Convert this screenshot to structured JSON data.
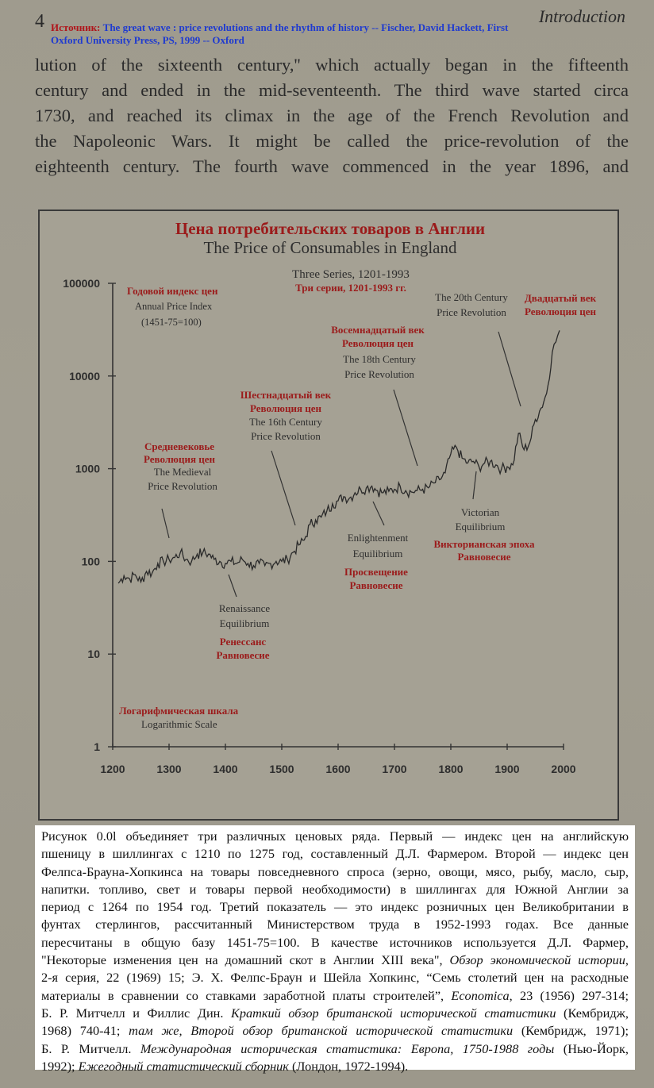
{
  "header": {
    "page_number": "4",
    "running_head": "Introduction",
    "source_label": "Источник:",
    "source_line1": "The great wave : price revolutions and the rhythm of history -- Fischer, David Hackett,  First",
    "source_line2": "Oxford University Press, PS, 1999 -- Oxford"
  },
  "body_lines": [
    "lution of the sixteenth century,'' which actually began in the fifteenth",
    "century and ended in the mid-seventeenth. The third wave started circa",
    "1730, and reached its climax in the age of the French Revolution and",
    "the Napoleonic Wars. It might be called the price-revolution of the",
    "eighteenth century. The fourth wave commenced in the year 1896, and"
  ],
  "figure": {
    "title_ru": "Цена потребительских товаров в Англии",
    "title_en": "The Price of Consumables in England",
    "subtitle_en": "Three Series, 1201-1993",
    "subtitle_ru": "Три серии, 1201-1993 гг.",
    "index_ru": "Годовой индекс цен",
    "index_en": "Annual Price Index",
    "index_base": "(1451-75=100)",
    "scale_ru": "Логарифмическая шкала",
    "scale_en": "Logarithmic  Scale",
    "annotations": {
      "medieval_ru_1": "Средневековье",
      "medieval_ru_2": "Революция цен",
      "medieval_en_1": "The Medieval",
      "medieval_en_2": "Price Revolution",
      "c16_ru_1": "Шестнадцатый век",
      "c16_ru_2": "Революция цен",
      "c16_en_1": "The 16th Century",
      "c16_en_2": "Price Revolution",
      "c18_ru_1": "Восемнадцатый век",
      "c18_ru_2": "Революция цен",
      "c18_en_1": "The 18th Century",
      "c18_en_2": "Price Revolution",
      "c20_en_1": "The 20th Century",
      "c20_en_2": "Price Revolution",
      "c20_ru_1": "Двадцатый век",
      "c20_ru_2": "Революция цен",
      "ren_en_1": "Renaissance",
      "ren_en_2": "Equilibrium",
      "ren_ru_1": "Ренессанс",
      "ren_ru_2": "Равновесие",
      "enl_en_1": "Enlightenment",
      "enl_en_2": "Equilibrium",
      "enl_ru_1": "Просвещение",
      "enl_ru_2": "Равновесие",
      "vic_en_1": "Victorian",
      "vic_en_2": "Equilibrium",
      "vic_ru_1": "Викторианская эпоха",
      "vic_ru_2": "Равновесие"
    }
  },
  "chart_data": {
    "type": "line",
    "title": "The Price of Consumables in England",
    "y_scale": "log",
    "ylim": [
      1,
      100000
    ],
    "xlim": [
      1200,
      2000
    ],
    "y_ticks": [
      "100000",
      "10000",
      "1000",
      "100",
      "10",
      "1"
    ],
    "x_ticks": [
      "1200",
      "1300",
      "1400",
      "1500",
      "1600",
      "1700",
      "1800",
      "1900",
      "2000"
    ],
    "series": [
      {
        "values": [
          [
            1210,
            58
          ],
          [
            1220,
            70
          ],
          [
            1230,
            65
          ],
          [
            1240,
            72
          ],
          [
            1250,
            60
          ],
          [
            1260,
            78
          ],
          [
            1270,
            75
          ],
          [
            1280,
            95
          ],
          [
            1290,
            100
          ],
          [
            1300,
            105
          ],
          [
            1310,
            110
          ],
          [
            1320,
            125
          ],
          [
            1330,
            105
          ],
          [
            1340,
            100
          ],
          [
            1350,
            120
          ],
          [
            1360,
            125
          ],
          [
            1370,
            120
          ],
          [
            1380,
            105
          ],
          [
            1390,
            100
          ],
          [
            1400,
            95
          ],
          [
            1410,
            100
          ],
          [
            1420,
            95
          ],
          [
            1430,
            105
          ],
          [
            1440,
            95
          ],
          [
            1450,
            90
          ],
          [
            1460,
            95
          ],
          [
            1470,
            90
          ],
          [
            1480,
            95
          ],
          [
            1490,
            100
          ],
          [
            1500,
            100
          ],
          [
            1510,
            105
          ],
          [
            1520,
            125
          ],
          [
            1530,
            150
          ],
          [
            1540,
            170
          ],
          [
            1550,
            250
          ],
          [
            1560,
            280
          ],
          [
            1570,
            300
          ],
          [
            1580,
            350
          ],
          [
            1590,
            420
          ],
          [
            1600,
            450
          ],
          [
            1610,
            500
          ],
          [
            1620,
            480
          ],
          [
            1630,
            550
          ],
          [
            1640,
            600
          ],
          [
            1650,
            620
          ],
          [
            1660,
            650
          ],
          [
            1670,
            580
          ],
          [
            1680,
            550
          ],
          [
            1690,
            570
          ],
          [
            1700,
            600
          ],
          [
            1710,
            650
          ],
          [
            1720,
            580
          ],
          [
            1730,
            560
          ],
          [
            1740,
            580
          ],
          [
            1750,
            600
          ],
          [
            1760,
            620
          ],
          [
            1770,
            700
          ],
          [
            1780,
            760
          ],
          [
            1790,
            900
          ],
          [
            1800,
            1450
          ],
          [
            1810,
            1700
          ],
          [
            1820,
            1300
          ],
          [
            1830,
            1150
          ],
          [
            1840,
            1200
          ],
          [
            1850,
            1050
          ],
          [
            1860,
            1150
          ],
          [
            1870,
            1200
          ],
          [
            1880,
            1100
          ],
          [
            1890,
            1000
          ],
          [
            1900,
            1050
          ],
          [
            1910,
            1100
          ],
          [
            1920,
            2400
          ],
          [
            1930,
            1600
          ],
          [
            1940,
            1900
          ],
          [
            1950,
            3400
          ],
          [
            1960,
            4500
          ],
          [
            1970,
            6500
          ],
          [
            1980,
            18000
          ],
          [
            1993,
            31000
          ]
        ]
      }
    ]
  },
  "caption_lines": [
    {
      "segments": [
        {
          "t": "Рисунок 0.0l объединяет три различных ценовых ряда. Первый — индекс цен на английскую"
        }
      ]
    },
    {
      "segments": [
        {
          "t": "пшеницу в шиллингах с 1210 по 1275 год, составленный Д.Л. Фармером. Второй — индекс цен"
        }
      ]
    },
    {
      "segments": [
        {
          "t": "Фелпса-Брауна-Хопкинса на товары повседневного спроса (зерно, овощи, мясо, рыбу, масло, сыр,"
        }
      ]
    },
    {
      "segments": [
        {
          "t": "напитки. топливо, свет и товары первой необходимости) в шиллингах для Южной Англии за"
        }
      ]
    },
    {
      "segments": [
        {
          "t": "период с 1264 по 1954 год. Третий показатель — это индекс розничных цен Великобритании в"
        }
      ]
    },
    {
      "segments": [
        {
          "t": "фунтах стерлингов, рассчитанный Министерством труда в 1952-1993 годах. Все данные"
        }
      ]
    },
    {
      "segments": [
        {
          "t": "пересчитаны в общую базу 1451-75=100. В качестве источников используется Д.Л. Фармер,"
        }
      ]
    },
    {
      "segments": [
        {
          "t": "\"Некоторые изменения цен на домашний скот в Англии XIII века\", "
        },
        {
          "t": "Обзор экономической истории",
          "i": true
        },
        {
          "t": ","
        }
      ]
    },
    {
      "segments": [
        {
          "t": "2-я серия, 22 (1969) 15; Э. Х. Фелпс-Браун и Шейла Хопкинс, “Семь столетий цен на расходные"
        }
      ]
    },
    {
      "segments": [
        {
          "t": "материалы в сравнении со ставками заработной платы строителей”, "
        },
        {
          "t": "Economica",
          "i": true
        },
        {
          "t": ", 23 (1956) 297-314;"
        }
      ]
    },
    {
      "segments": [
        {
          "t": "Б. Р. Митчелл и Филлис Дин. "
        },
        {
          "t": "Краткий обзор британской исторической статистики",
          "i": true
        },
        {
          "t": " (Кембридж,"
        }
      ]
    },
    {
      "segments": [
        {
          "t": "1968) 740-41; "
        },
        {
          "t": "там же, Второй обзор британской исторической статистики",
          "i": true
        },
        {
          "t": " (Кембридж, 1971);"
        }
      ]
    },
    {
      "segments": [
        {
          "t": "Б. Р. Митчелл. "
        },
        {
          "t": "Международная историческая статистика: Европа, 1750-1988 годы",
          "i": true
        },
        {
          "t": " (Нью-Йорк,"
        }
      ]
    },
    {
      "segments": [
        {
          "t": "1992); "
        },
        {
          "t": "Ежегодный статистический сборник",
          "i": true
        },
        {
          "t": " (Лондон, 1972-1994)."
        }
      ]
    }
  ]
}
